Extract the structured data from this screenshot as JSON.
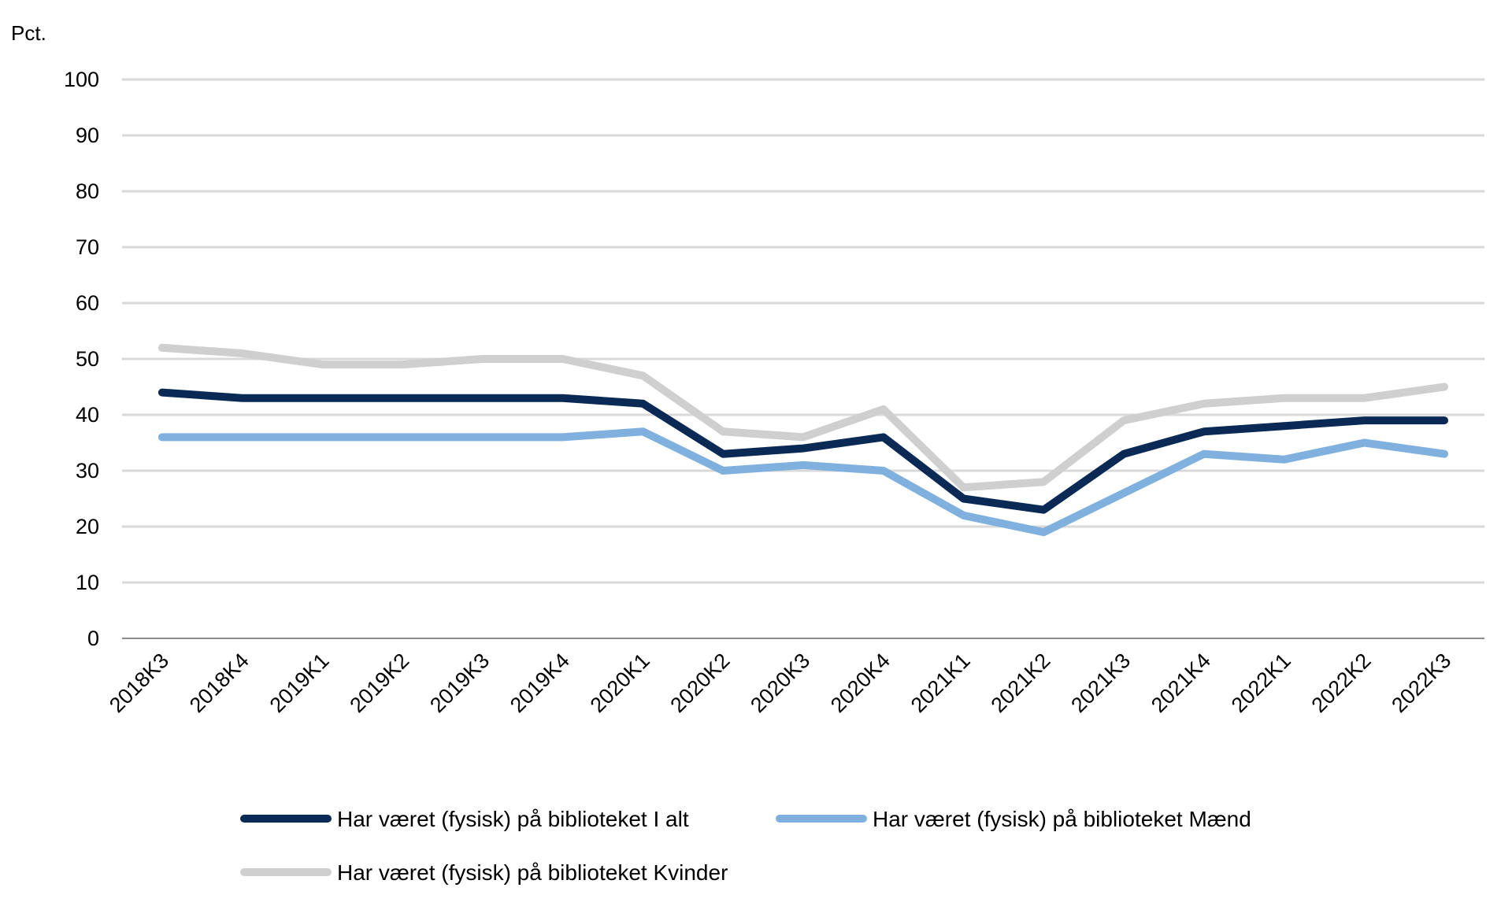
{
  "chart_data": {
    "type": "line",
    "title": "",
    "ylabel": "Pct.",
    "xlabel": "",
    "ylim": [
      0,
      100
    ],
    "yticks": [
      0,
      10,
      20,
      30,
      40,
      50,
      60,
      70,
      80,
      90,
      100
    ],
    "grid": true,
    "legend_position": "bottom",
    "categories": [
      "2018K3",
      "2018K4",
      "2019K1",
      "2019K2",
      "2019K3",
      "2019K4",
      "2020K1",
      "2020K2",
      "2020K3",
      "2020K4",
      "2021K1",
      "2021K2",
      "2021K3",
      "2021K4",
      "2022K1",
      "2022K2",
      "2022K3"
    ],
    "series": [
      {
        "name": "Har været (fysisk) på biblioteket I alt",
        "color": "#0a2a55",
        "values": [
          44,
          43,
          43,
          43,
          43,
          43,
          42,
          33,
          34,
          36,
          25,
          23,
          33,
          37,
          38,
          39,
          39
        ]
      },
      {
        "name": "Har været (fysisk) på biblioteket Mænd",
        "color": "#7fb0de",
        "values": [
          36,
          36,
          36,
          36,
          36,
          36,
          37,
          30,
          31,
          30,
          22,
          19,
          26,
          33,
          32,
          35,
          33
        ]
      },
      {
        "name": "Har været (fysisk) på biblioteket Kvinder",
        "color": "#cfcfcf",
        "values": [
          52,
          51,
          49,
          49,
          50,
          50,
          47,
          37,
          36,
          41,
          27,
          28,
          39,
          42,
          43,
          43,
          45
        ]
      }
    ]
  }
}
